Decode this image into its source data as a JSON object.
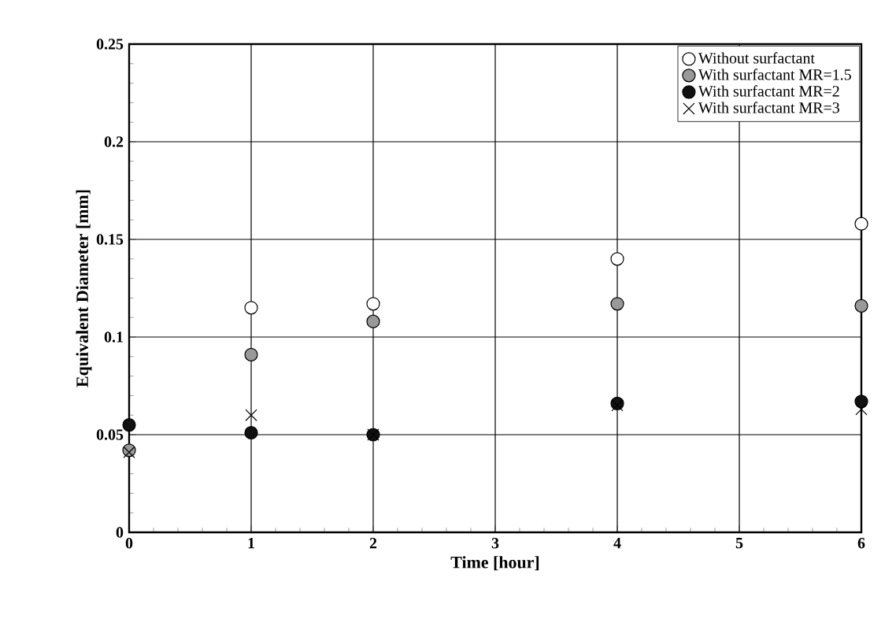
{
  "chart_data": {
    "type": "scatter",
    "xlabel": "Time [hour]",
    "ylabel": "Equivalent Diameter [mm]",
    "x": [
      0,
      1,
      2,
      4,
      6
    ],
    "series": [
      {
        "name": "Without surfactant",
        "color": "#ffffff",
        "marker": "circle",
        "values": [
          null,
          0.115,
          0.117,
          0.14,
          0.158
        ]
      },
      {
        "name": "With surfactant MR=1.5",
        "color": "#999999",
        "marker": "circle",
        "values": [
          0.042,
          0.091,
          0.108,
          0.117,
          0.116
        ]
      },
      {
        "name": "With surfactant MR=2",
        "color": "#111111",
        "marker": "circle",
        "values": [
          0.055,
          0.051,
          0.05,
          0.066,
          0.067
        ]
      },
      {
        "name": "With surfactant MR=3",
        "color": "#000000",
        "marker": "cross",
        "values": [
          0.041,
          0.06,
          0.05,
          0.065,
          0.063
        ]
      }
    ],
    "xlim": [
      0,
      6
    ],
    "xticks": [
      0,
      1,
      2,
      3,
      4,
      5,
      6
    ],
    "ylim": [
      0,
      0.25
    ],
    "yticks": [
      0,
      0.05,
      0.1,
      0.15,
      0.2,
      0.25
    ],
    "grid": true,
    "legend": "top right"
  }
}
